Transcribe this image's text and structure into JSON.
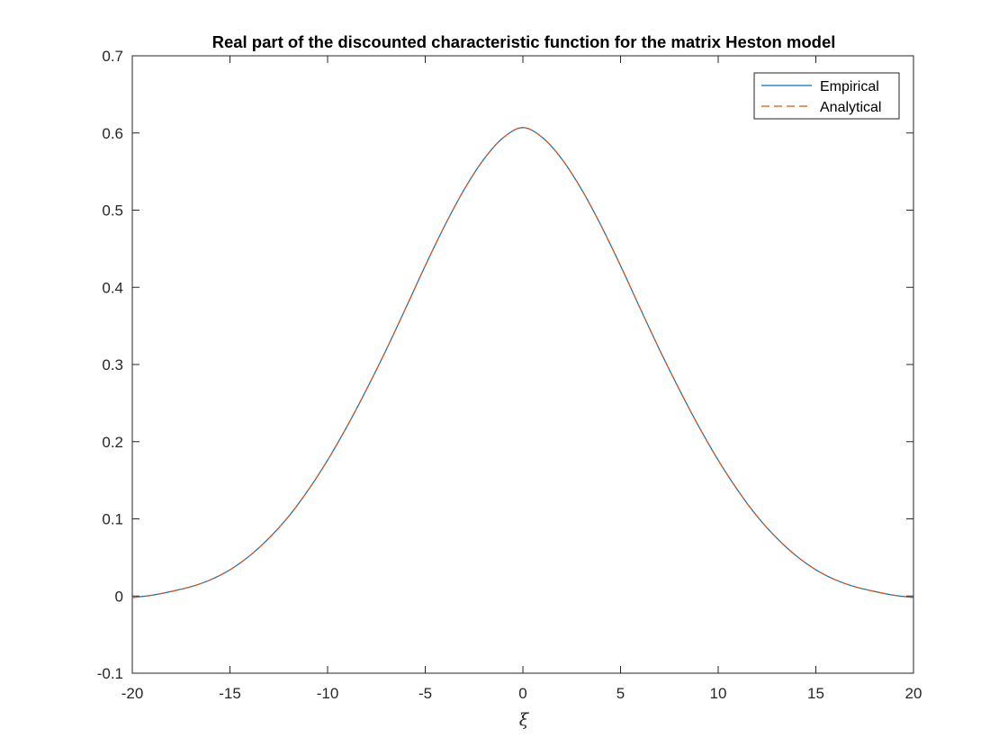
{
  "chart_data": {
    "type": "line",
    "title": "Real part of the discounted characteristic function for the matrix Heston model",
    "xlabel": "ξ",
    "ylabel": "",
    "xlim": [
      -20,
      20
    ],
    "ylim": [
      -0.1,
      0.7
    ],
    "xticks": [
      -20,
      -15,
      -10,
      -5,
      0,
      5,
      10,
      15,
      20
    ],
    "xtick_labels": [
      "-20",
      "-15",
      "-10",
      "-5",
      "0",
      "5",
      "10",
      "15",
      "20"
    ],
    "yticks": [
      -0.1,
      0,
      0.1,
      0.2,
      0.3,
      0.4,
      0.5,
      0.6,
      0.7
    ],
    "ytick_labels": [
      "-0.1",
      "0",
      "0.1",
      "0.2",
      "0.3",
      "0.4",
      "0.5",
      "0.6",
      "0.7"
    ],
    "grid": false,
    "legend_position": "top-right",
    "x": [
      -20,
      -19,
      -18,
      -17,
      -16,
      -15,
      -14,
      -13,
      -12,
      -11,
      -10,
      -9,
      -8,
      -7,
      -6,
      -5,
      -4,
      -3,
      -2,
      -1,
      0,
      1,
      2,
      3,
      4,
      5,
      6,
      7,
      8,
      9,
      10,
      11,
      12,
      13,
      14,
      15,
      16,
      17,
      18,
      19,
      20
    ],
    "series": [
      {
        "name": "Empirical",
        "color": "#0072BD",
        "style": "solid",
        "values": [
          -0.002,
          0.001,
          0.006,
          0.012,
          0.021,
          0.034,
          0.052,
          0.075,
          0.103,
          0.137,
          0.176,
          0.22,
          0.268,
          0.319,
          0.373,
          0.428,
          0.48,
          0.527,
          0.566,
          0.594,
          0.607,
          0.594,
          0.566,
          0.527,
          0.48,
          0.428,
          0.373,
          0.319,
          0.268,
          0.22,
          0.176,
          0.137,
          0.103,
          0.075,
          0.052,
          0.034,
          0.021,
          0.012,
          0.006,
          0.001,
          -0.002
        ]
      },
      {
        "name": "Analytical",
        "color": "#D95319",
        "style": "dashed",
        "values": [
          -0.002,
          0.001,
          0.006,
          0.012,
          0.021,
          0.034,
          0.052,
          0.075,
          0.103,
          0.137,
          0.176,
          0.22,
          0.268,
          0.319,
          0.373,
          0.428,
          0.48,
          0.527,
          0.566,
          0.594,
          0.607,
          0.594,
          0.566,
          0.527,
          0.48,
          0.428,
          0.373,
          0.319,
          0.268,
          0.22,
          0.176,
          0.137,
          0.103,
          0.075,
          0.052,
          0.034,
          0.021,
          0.012,
          0.006,
          0.001,
          -0.002
        ]
      }
    ]
  }
}
